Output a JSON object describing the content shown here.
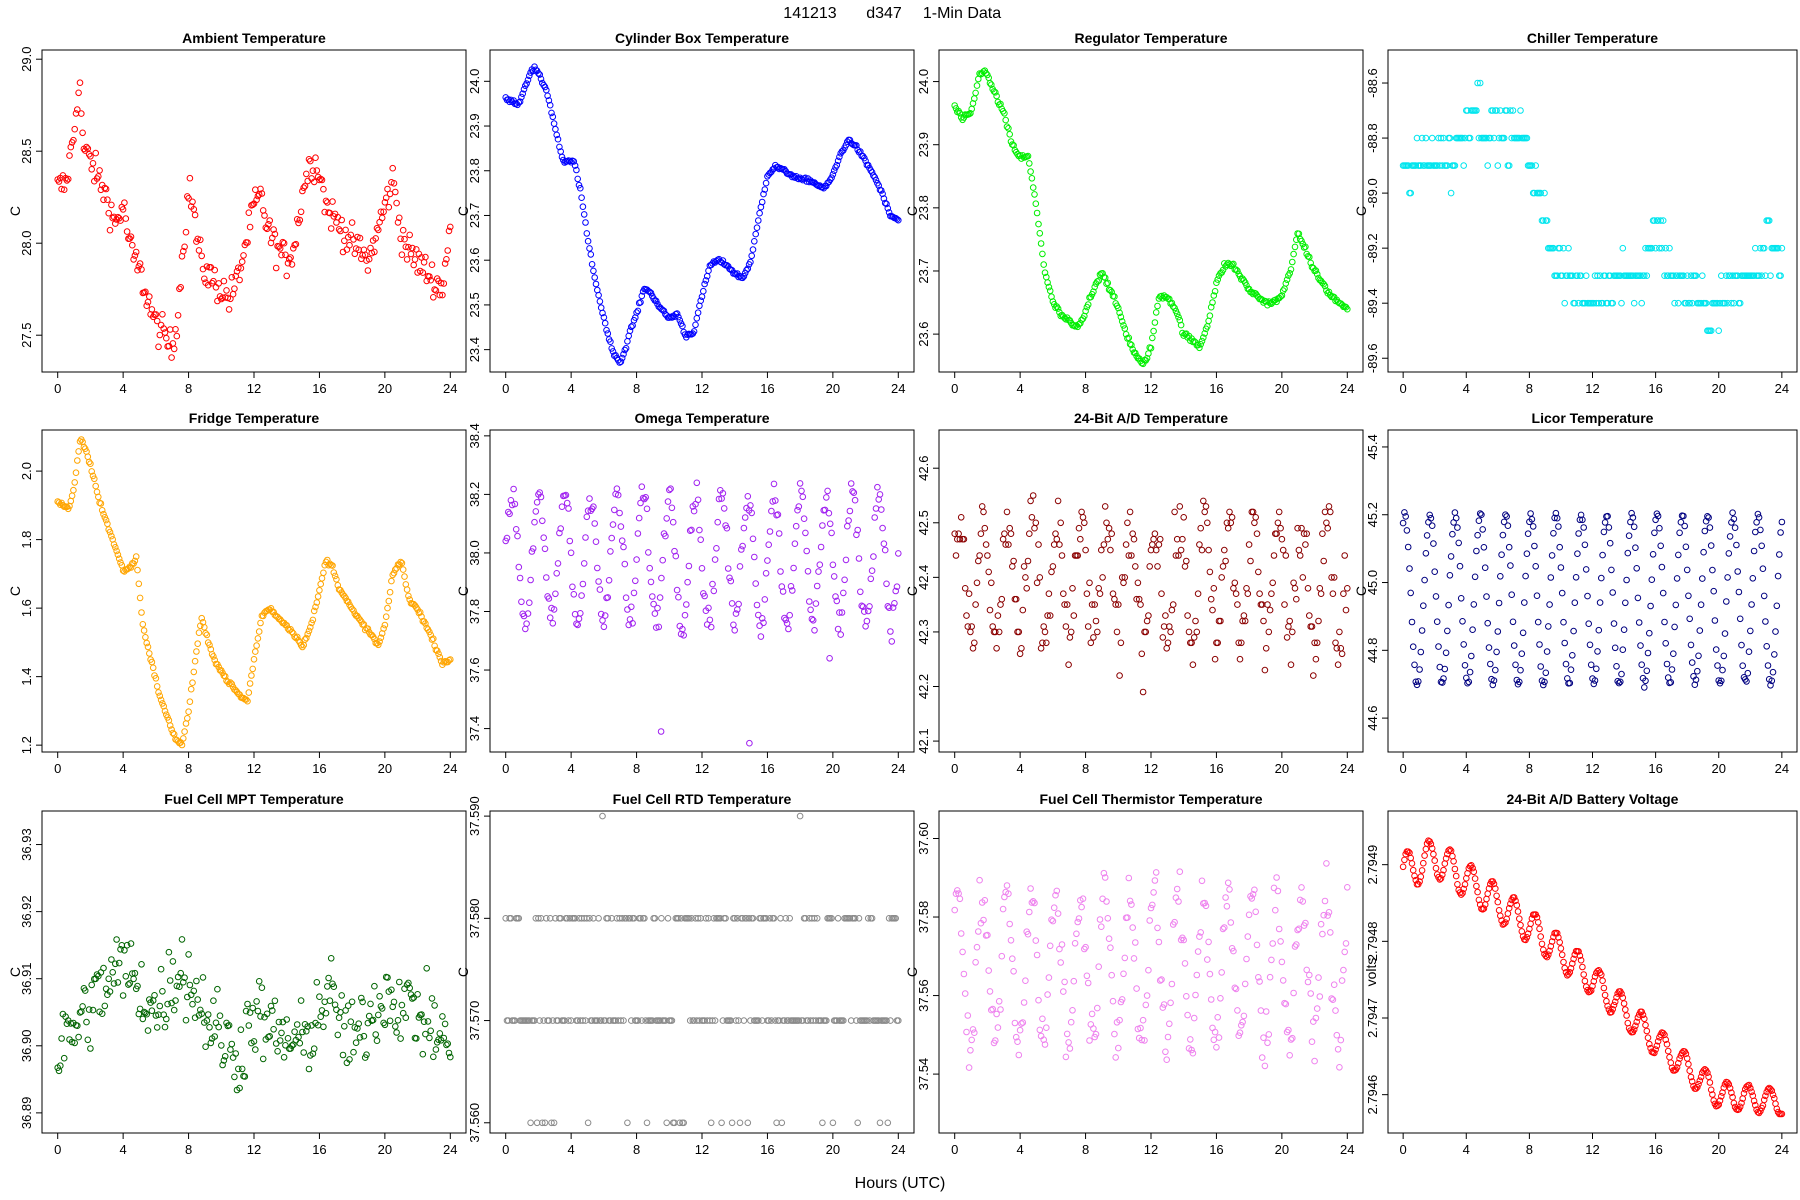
{
  "figure": {
    "title_parts": [
      "141213",
      "d347",
      "1-Min Data"
    ],
    "xlabel": "Hours (UTC)"
  },
  "chart_data": [
    {
      "type": "scatter",
      "title": "Ambient Temperature",
      "ylabel": "C",
      "color": "#ff0000",
      "xlim": [
        0,
        24
      ],
      "ylim": [
        27.3,
        29.05
      ],
      "yticks": [
        27.5,
        28.0,
        28.5,
        29.0
      ],
      "ytick_labels": [
        "27.5",
        "28.0",
        "28.5",
        "29.0"
      ],
      "xticks": [
        0,
        4,
        8,
        12,
        16,
        20,
        24
      ],
      "x": [
        0,
        0.5,
        1,
        1.3,
        1.6,
        2,
        2.5,
        3,
        3.5,
        4,
        4.5,
        5,
        5.5,
        6,
        6.5,
        7,
        7.3,
        7.6,
        8,
        8.3,
        8.6,
        9,
        9.5,
        10,
        10.5,
        11,
        11.5,
        12,
        12.4,
        12.8,
        13.2,
        13.6,
        14,
        14.5,
        15,
        15.5,
        16,
        16.4,
        16.8,
        17.2,
        17.6,
        18,
        18.5,
        19,
        19.5,
        20,
        20.5,
        21,
        21.5,
        22,
        22.5,
        23,
        23.5,
        24
      ],
      "y": [
        28.3,
        28.32,
        28.6,
        28.9,
        28.5,
        28.45,
        28.35,
        28.25,
        28.1,
        28.2,
        27.95,
        27.85,
        27.7,
        27.55,
        27.5,
        27.42,
        27.6,
        27.9,
        28.3,
        28.2,
        27.95,
        27.85,
        27.8,
        27.75,
        27.7,
        27.8,
        28.0,
        28.2,
        28.25,
        28.1,
        28.0,
        27.95,
        27.9,
        28.0,
        28.3,
        28.45,
        28.4,
        28.2,
        28.15,
        28.1,
        28.05,
        28.0,
        27.95,
        27.9,
        28.05,
        28.2,
        28.35,
        28.05,
        27.95,
        27.9,
        27.85,
        27.8,
        27.75,
        28.1
      ],
      "jitter": 0.09
    },
    {
      "type": "scatter",
      "title": "Cylinder Box Temperature",
      "ylabel": "C",
      "color": "#0000ff",
      "xlim": [
        0,
        24
      ],
      "ylim": [
        23.35,
        24.07
      ],
      "yticks": [
        23.4,
        23.5,
        23.6,
        23.7,
        23.8,
        23.9,
        24.0
      ],
      "ytick_labels": [
        "23.4",
        "23.5",
        "23.6",
        "23.7",
        "23.8",
        "23.9",
        "24.0"
      ],
      "xticks": [
        0,
        4,
        8,
        12,
        16,
        20,
        24
      ],
      "x": [
        0,
        0.8,
        1.5,
        1.8,
        2.5,
        3,
        3.5,
        4.2,
        4.6,
        5,
        5.5,
        6,
        6.5,
        7,
        7.3,
        7.6,
        8,
        8.5,
        9,
        9.5,
        10,
        10.5,
        11,
        11.5,
        12,
        12.5,
        13,
        13.5,
        14,
        14.5,
        15,
        15.5,
        16,
        16.5,
        17,
        17.5,
        18,
        18.5,
        19,
        19.5,
        20,
        20.5,
        21,
        21.5,
        22,
        22.5,
        23,
        23.5,
        24
      ],
      "y": [
        23.96,
        23.95,
        24.02,
        24.03,
        23.98,
        23.9,
        23.82,
        23.82,
        23.75,
        23.65,
        23.55,
        23.47,
        23.4,
        23.37,
        23.4,
        23.44,
        23.48,
        23.54,
        23.52,
        23.49,
        23.47,
        23.48,
        23.43,
        23.44,
        23.52,
        23.59,
        23.6,
        23.59,
        23.57,
        23.56,
        23.6,
        23.7,
        23.79,
        23.81,
        23.8,
        23.79,
        23.78,
        23.78,
        23.77,
        23.76,
        23.79,
        23.84,
        23.87,
        23.85,
        23.82,
        23.79,
        23.75,
        23.7,
        23.69
      ],
      "jitter": 0.004
    },
    {
      "type": "scatter",
      "title": "Regulator Temperature",
      "ylabel": "C",
      "color": "#00ee00",
      "xlim": [
        0,
        24
      ],
      "ylim": [
        23.54,
        24.05
      ],
      "yticks": [
        23.6,
        23.7,
        23.8,
        23.9,
        24.0
      ],
      "ytick_labels": [
        "23.6",
        "23.7",
        "23.8",
        "23.9",
        "24.0"
      ],
      "xticks": [
        0,
        4,
        8,
        12,
        16,
        20,
        24
      ],
      "x": [
        0,
        0.5,
        1,
        1.5,
        1.8,
        2.3,
        3,
        3.5,
        4,
        4.5,
        5,
        5.5,
        6,
        6.5,
        7,
        7.4,
        7.8,
        8.3,
        9,
        9.5,
        10,
        10.5,
        11,
        11.5,
        12,
        12.5,
        13,
        13.5,
        14,
        14.5,
        15,
        15.5,
        16,
        16.5,
        17,
        17.5,
        18,
        18.5,
        19,
        19.5,
        20,
        20.5,
        21,
        21.5,
        22,
        22.5,
        23,
        23.5,
        24
      ],
      "y": [
        23.96,
        23.94,
        23.95,
        24.01,
        24.02,
        23.99,
        23.95,
        23.9,
        23.88,
        23.88,
        23.8,
        23.7,
        23.65,
        23.63,
        23.62,
        23.61,
        23.62,
        23.66,
        23.7,
        23.67,
        23.64,
        23.6,
        23.57,
        23.55,
        23.58,
        23.66,
        23.66,
        23.64,
        23.6,
        23.59,
        23.58,
        23.62,
        23.68,
        23.71,
        23.71,
        23.69,
        23.67,
        23.66,
        23.65,
        23.65,
        23.66,
        23.7,
        23.76,
        23.73,
        23.7,
        23.68,
        23.66,
        23.65,
        23.64
      ],
      "jitter": 0.004
    },
    {
      "type": "scatter",
      "title": "Chiller Temperature",
      "ylabel": "C",
      "color": "#00e5ee",
      "xlim": [
        0,
        24
      ],
      "ylim": [
        -89.65,
        -88.48
      ],
      "yticks": [
        -89.6,
        -89.4,
        -89.2,
        -89.0,
        -88.8,
        -88.6
      ],
      "ytick_labels": [
        "-89.6",
        "-89.4",
        "-89.2",
        "-89.0",
        "-88.8",
        "-88.6"
      ],
      "xticks": [
        0,
        4,
        8,
        12,
        16,
        20,
        24
      ],
      "x": [
        0,
        0.5,
        1,
        1.5,
        2,
        2.5,
        3,
        3.5,
        4,
        4.5,
        5,
        5.5,
        6,
        6.5,
        7,
        7.5,
        8,
        8.5,
        9,
        9.5,
        10,
        10.5,
        11,
        11.5,
        12,
        12.5,
        13,
        13.5,
        14,
        14.5,
        15,
        15.5,
        16,
        16.5,
        17,
        17.5,
        18,
        18.5,
        19,
        19.5,
        20,
        20.5,
        21,
        21.5,
        22,
        22.5,
        23,
        23.5,
        24
      ],
      "y": [
        -88.9,
        -88.95,
        -88.9,
        -88.85,
        -88.9,
        -88.85,
        -88.9,
        -88.85,
        -88.75,
        -88.65,
        -88.75,
        -88.8,
        -88.78,
        -88.8,
        -88.8,
        -88.8,
        -88.85,
        -89.0,
        -89.1,
        -89.2,
        -89.25,
        -89.3,
        -89.35,
        -89.4,
        -89.4,
        -89.35,
        -89.35,
        -89.3,
        -89.25,
        -89.3,
        -89.35,
        -89.2,
        -89.1,
        -89.2,
        -89.3,
        -89.35,
        -89.4,
        -89.35,
        -89.4,
        -89.45,
        -89.4,
        -89.35,
        -89.35,
        -89.3,
        -89.3,
        -89.25,
        -89.22,
        -89.2,
        -89.2
      ],
      "jitter": 0.09,
      "quantize": 0.1
    },
    {
      "type": "scatter",
      "title": "Fridge Temperature",
      "ylabel": "C",
      "color": "#ffa500",
      "xlim": [
        0,
        24
      ],
      "ylim": [
        1.18,
        2.12
      ],
      "yticks": [
        1.2,
        1.4,
        1.6,
        1.8,
        2.0
      ],
      "ytick_labels": [
        "1.2",
        "1.4",
        "1.6",
        "1.8",
        "2.0"
      ],
      "xticks": [
        0,
        4,
        8,
        12,
        16,
        20,
        24
      ],
      "x": [
        0,
        0.7,
        1,
        1.4,
        2,
        2.5,
        3,
        3.5,
        4,
        4.5,
        4.8,
        5.2,
        5.7,
        6.2,
        6.7,
        7.2,
        7.6,
        8,
        8.5,
        8.8,
        9.2,
        9.7,
        10.2,
        10.7,
        11.2,
        11.6,
        12,
        12.5,
        13,
        13.5,
        14,
        14.5,
        15,
        15.5,
        16,
        16.4,
        16.8,
        17.2,
        17.7,
        18.2,
        18.7,
        19.2,
        19.6,
        20,
        20.5,
        21,
        21.5,
        22,
        22.5,
        23,
        23.5,
        24
      ],
      "y": [
        1.91,
        1.89,
        1.95,
        2.1,
        2.02,
        1.92,
        1.85,
        1.78,
        1.71,
        1.72,
        1.75,
        1.55,
        1.45,
        1.35,
        1.28,
        1.22,
        1.2,
        1.3,
        1.48,
        1.57,
        1.5,
        1.44,
        1.4,
        1.37,
        1.34,
        1.33,
        1.45,
        1.58,
        1.6,
        1.57,
        1.55,
        1.52,
        1.49,
        1.55,
        1.65,
        1.74,
        1.72,
        1.66,
        1.62,
        1.58,
        1.55,
        1.52,
        1.49,
        1.55,
        1.7,
        1.74,
        1.62,
        1.6,
        1.55,
        1.5,
        1.44,
        1.45
      ],
      "jitter": 0.006
    },
    {
      "type": "scatter",
      "title": "Omega Temperature",
      "ylabel": "C",
      "color": "#a020f0",
      "xlim": [
        0,
        24
      ],
      "ylim": [
        37.32,
        38.42
      ],
      "yticks": [
        37.4,
        37.6,
        37.8,
        38.0,
        38.2,
        38.4
      ],
      "ytick_labels": [
        "37.4",
        "37.6",
        "37.8",
        "38.0",
        "38.2",
        "38.4"
      ],
      "xticks": [
        0,
        4,
        8,
        12,
        16,
        20,
        24
      ],
      "sine": {
        "base": 37.98,
        "amp": 0.22,
        "period": 1.6,
        "phase": 0.0
      },
      "jitter": 0.05,
      "outliers": [
        [
          9.5,
          37.39
        ],
        [
          14.9,
          37.35
        ],
        [
          19.8,
          37.64
        ]
      ]
    },
    {
      "type": "scatter",
      "title": "24-Bit A/D Temperature",
      "ylabel": "C",
      "color": "#8b0000",
      "xlim": [
        0,
        24
      ],
      "ylim": [
        42.08,
        42.67
      ],
      "yticks": [
        42.1,
        42.2,
        42.3,
        42.4,
        42.5,
        42.6
      ],
      "ytick_labels": [
        "42.1",
        "42.2",
        "42.3",
        "42.4",
        "42.5",
        "42.6"
      ],
      "xticks": [
        0,
        4,
        8,
        12,
        16,
        20,
        24
      ],
      "sine": {
        "base": 42.39,
        "amp": 0.11,
        "period": 1.5,
        "phase": 0.5
      },
      "jitter": 0.07,
      "quantize": 0.01
    },
    {
      "type": "scatter",
      "title": "Licor Temperature",
      "ylabel": "C",
      "color": "#000080",
      "xlim": [
        0,
        24
      ],
      "ylim": [
        44.5,
        45.45
      ],
      "yticks": [
        44.6,
        44.8,
        45.0,
        45.2,
        45.4
      ],
      "ytick_labels": [
        "44.6",
        "44.8",
        "45.0",
        "45.2",
        "45.4"
      ],
      "xticks": [
        0,
        4,
        8,
        12,
        16,
        20,
        24
      ],
      "sine": {
        "base": 44.95,
        "amp": 0.25,
        "period": 1.6,
        "phase": 1.2
      },
      "jitter": 0.01
    },
    {
      "type": "scatter",
      "title": "Fuel Cell MPT Temperature",
      "ylabel": "C",
      "color": "#006400",
      "xlim": [
        0,
        24
      ],
      "ylim": [
        36.887,
        36.935
      ],
      "yticks": [
        36.89,
        36.9,
        36.91,
        36.92,
        36.93
      ],
      "ytick_labels": [
        "36.89",
        "36.90",
        "36.91",
        "36.92",
        "36.93"
      ],
      "xticks": [
        0,
        4,
        8,
        12,
        16,
        20,
        24
      ],
      "x": [
        0,
        2,
        4,
        6,
        7.5,
        9,
        11,
        12,
        13,
        15,
        16.5,
        18,
        20,
        22,
        24
      ],
      "y": [
        36.899,
        36.906,
        36.912,
        36.905,
        36.912,
        36.905,
        36.898,
        36.905,
        36.902,
        36.9,
        36.908,
        36.9,
        36.908,
        36.905,
        36.9
      ],
      "jitter": 0.006
    },
    {
      "type": "scatter",
      "title": "Fuel Cell RTD Temperature",
      "ylabel": "C",
      "color": "#8a8a8a",
      "xlim": [
        0,
        24
      ],
      "ylim": [
        37.559,
        37.5905
      ],
      "yticks": [
        37.56,
        37.57,
        37.58,
        37.59
      ],
      "ytick_labels": [
        "37.560",
        "37.570",
        "37.580",
        "37.590"
      ],
      "xticks": [
        0,
        4,
        8,
        12,
        16,
        20,
        24
      ],
      "levels": [
        37.56,
        37.57,
        37.58,
        37.59
      ],
      "level_weights": [
        0.1,
        0.48,
        0.4,
        0.02
      ]
    },
    {
      "type": "scatter",
      "title": "Fuel Cell Thermistor Temperature",
      "ylabel": "C",
      "color": "#ee82ee",
      "xlim": [
        0,
        24
      ],
      "ylim": [
        37.525,
        37.607
      ],
      "yticks": [
        37.54,
        37.56,
        37.58,
        37.6
      ],
      "ytick_labels": [
        "37.54",
        "37.56",
        "37.58",
        "37.60"
      ],
      "xticks": [
        0,
        4,
        8,
        12,
        16,
        20,
        24
      ],
      "sine": {
        "base": 37.567,
        "amp": 0.019,
        "period": 1.5,
        "phase": 0.8
      },
      "jitter": 0.007
    },
    {
      "type": "scatter",
      "title": "24-Bit A/D Battery Voltage",
      "ylabel": "volts",
      "color": "#ff0000",
      "xlim": [
        0,
        24
      ],
      "ylim": [
        2.79455,
        2.79497
      ],
      "yticks": [
        2.7946,
        2.7947,
        2.7948,
        2.7949
      ],
      "ytick_labels": [
        "2.7946",
        "2.7947",
        "2.7948",
        "2.7949"
      ],
      "xticks": [
        0,
        4,
        8,
        12,
        16,
        20,
        24
      ],
      "x": [
        0,
        2,
        4,
        8,
        12,
        16,
        20,
        24
      ],
      "y": [
        2.79489,
        2.79491,
        2.79488,
        2.79482,
        2.79475,
        2.79467,
        2.7946,
        2.79459
      ],
      "sine": {
        "base": 0,
        "amp": 2.5e-05,
        "period": 1.35,
        "phase": 0.3
      },
      "amp_decay": true,
      "jitter": 1e-06
    }
  ]
}
